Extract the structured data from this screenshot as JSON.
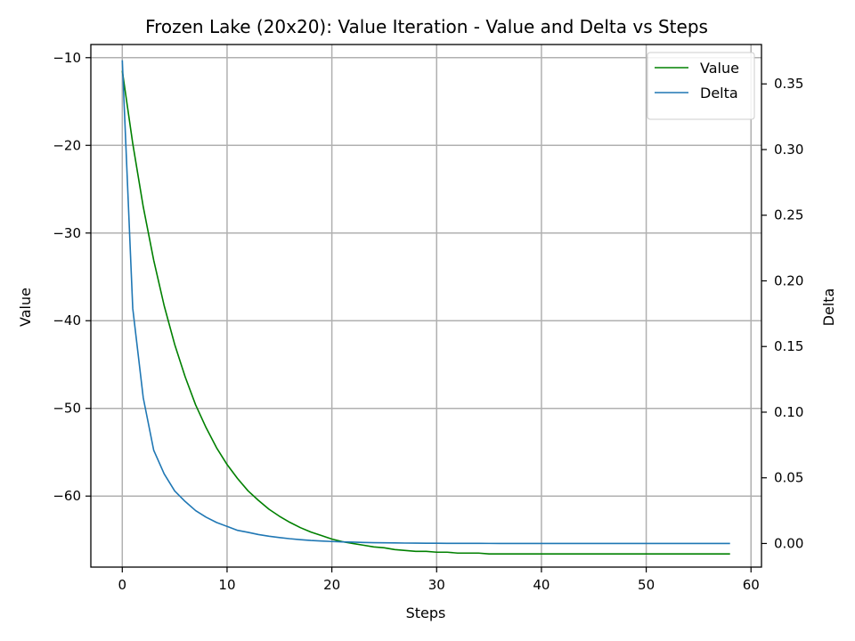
{
  "chart_data": {
    "type": "line",
    "title": "Frozen Lake (20x20): Value Iteration - Value and Delta vs Steps",
    "xlabel": "Steps",
    "ylabel_left": "Value",
    "ylabel_right": "Delta",
    "xlim": [
      -3,
      61
    ],
    "ylim_left": [
      -68.1,
      -8.5
    ],
    "ylim_right": [
      -0.018,
      0.38
    ],
    "x_ticks": [
      0,
      10,
      20,
      30,
      40,
      50,
      60
    ],
    "y_left_ticks": [
      -10,
      -20,
      -30,
      -40,
      -50,
      -60
    ],
    "y_right_ticks": [
      0.0,
      0.05,
      0.1,
      0.15,
      0.2,
      0.25,
      0.3,
      0.35
    ],
    "y_right_tick_labels": [
      "0.00",
      "0.05",
      "0.10",
      "0.15",
      "0.20",
      "0.25",
      "0.30",
      "0.35"
    ],
    "grid": true,
    "legend_position": "top-right",
    "series": [
      {
        "name": "Value",
        "axis": "left",
        "color": "#008000",
        "x": [
          0,
          1,
          2,
          3,
          4,
          5,
          6,
          7,
          8,
          9,
          10,
          11,
          12,
          13,
          14,
          15,
          16,
          17,
          18,
          19,
          20,
          21,
          22,
          23,
          24,
          25,
          26,
          27,
          28,
          29,
          30,
          31,
          32,
          33,
          34,
          35,
          36,
          37,
          38,
          39,
          40,
          41,
          42,
          43,
          44,
          45,
          46,
          47,
          48,
          49,
          50,
          51,
          52,
          53,
          54,
          55,
          56,
          57,
          58
        ],
        "values": [
          -11.5,
          -19.8,
          -27.0,
          -33.1,
          -38.3,
          -42.7,
          -46.4,
          -49.6,
          -52.2,
          -54.5,
          -56.4,
          -58.0,
          -59.4,
          -60.5,
          -61.5,
          -62.3,
          -63.0,
          -63.6,
          -64.1,
          -64.5,
          -64.9,
          -65.2,
          -65.4,
          -65.6,
          -65.8,
          -65.9,
          -66.1,
          -66.2,
          -66.3,
          -66.3,
          -66.4,
          -66.4,
          -66.5,
          -66.5,
          -66.5,
          -66.6,
          -66.6,
          -66.6,
          -66.6,
          -66.6,
          -66.6,
          -66.6,
          -66.6,
          -66.6,
          -66.6,
          -66.6,
          -66.6,
          -66.6,
          -66.6,
          -66.6,
          -66.6,
          -66.6,
          -66.6,
          -66.6,
          -66.6,
          -66.6,
          -66.6,
          -66.6,
          -66.6
        ]
      },
      {
        "name": "Delta",
        "axis": "right",
        "color": "#1f77b4",
        "x": [
          0,
          1,
          2,
          3,
          4,
          5,
          6,
          7,
          8,
          9,
          10,
          11,
          12,
          13,
          14,
          15,
          16,
          17,
          18,
          19,
          20,
          21,
          22,
          23,
          24,
          25,
          26,
          27,
          28,
          29,
          30,
          31,
          32,
          33,
          34,
          35,
          36,
          37,
          38,
          39,
          40,
          41,
          42,
          43,
          44,
          45,
          46,
          47,
          48,
          49,
          50,
          51,
          52,
          53,
          54,
          55,
          56,
          57,
          58
        ],
        "values": [
          0.368,
          0.179,
          0.111,
          0.071,
          0.053,
          0.04,
          0.032,
          0.025,
          0.02,
          0.016,
          0.013,
          0.01,
          0.0085,
          0.0068,
          0.0055,
          0.0045,
          0.0036,
          0.0029,
          0.0023,
          0.0019,
          0.0015,
          0.0012,
          0.001,
          0.0008,
          0.0006,
          0.0005,
          0.0004,
          0.0003,
          0.00025,
          0.0002,
          0.00015,
          0.00012,
          0.0001,
          8e-05,
          6e-05,
          5e-05,
          4e-05,
          3e-05,
          2e-05,
          2e-05,
          1e-05,
          1e-05,
          1e-05,
          0,
          0,
          0,
          0,
          0,
          0,
          0,
          0,
          0,
          0,
          0,
          0,
          0,
          0,
          0,
          0
        ]
      }
    ]
  }
}
